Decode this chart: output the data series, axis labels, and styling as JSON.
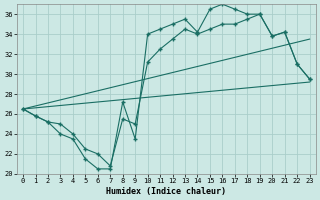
{
  "xlabel": "Humidex (Indice chaleur)",
  "bg_color": "#cce8e4",
  "grid_color": "#aaceca",
  "line_color": "#1a6e64",
  "xlim": [
    -0.5,
    23.5
  ],
  "ylim": [
    20,
    37
  ],
  "yticks": [
    20,
    22,
    24,
    26,
    28,
    30,
    32,
    34,
    36
  ],
  "xticks": [
    0,
    1,
    2,
    3,
    4,
    5,
    6,
    7,
    8,
    9,
    10,
    11,
    12,
    13,
    14,
    15,
    16,
    17,
    18,
    19,
    20,
    21,
    22,
    23
  ],
  "line1_x": [
    0,
    1,
    2,
    3,
    4,
    5,
    6,
    7,
    8,
    9,
    10,
    11,
    12,
    13,
    14,
    15,
    16,
    17,
    18,
    19,
    20,
    21,
    22,
    23
  ],
  "line1_y": [
    26.5,
    25.8,
    25.2,
    24.0,
    23.5,
    21.5,
    20.5,
    20.5,
    27.2,
    23.5,
    34.0,
    34.5,
    35.0,
    35.5,
    34.2,
    36.5,
    37.0,
    36.5,
    36.0,
    36.0,
    33.8,
    34.2,
    31.0,
    29.5
  ],
  "line2_x": [
    0,
    1,
    2,
    3,
    4,
    5,
    6,
    7,
    8,
    9,
    10,
    11,
    12,
    13,
    14,
    15,
    16,
    17,
    18,
    19,
    20,
    21,
    22,
    23
  ],
  "line2_y": [
    26.5,
    25.8,
    25.2,
    25.0,
    24.0,
    22.5,
    22.0,
    20.8,
    25.5,
    25.0,
    31.2,
    32.5,
    33.5,
    34.5,
    34.0,
    34.5,
    35.0,
    35.0,
    35.5,
    36.0,
    33.8,
    34.2,
    31.0,
    29.5
  ],
  "line3_x": [
    0,
    23
  ],
  "line3_y": [
    26.5,
    29.2
  ],
  "line4_x": [
    0,
    23
  ],
  "line4_y": [
    26.5,
    33.5
  ]
}
